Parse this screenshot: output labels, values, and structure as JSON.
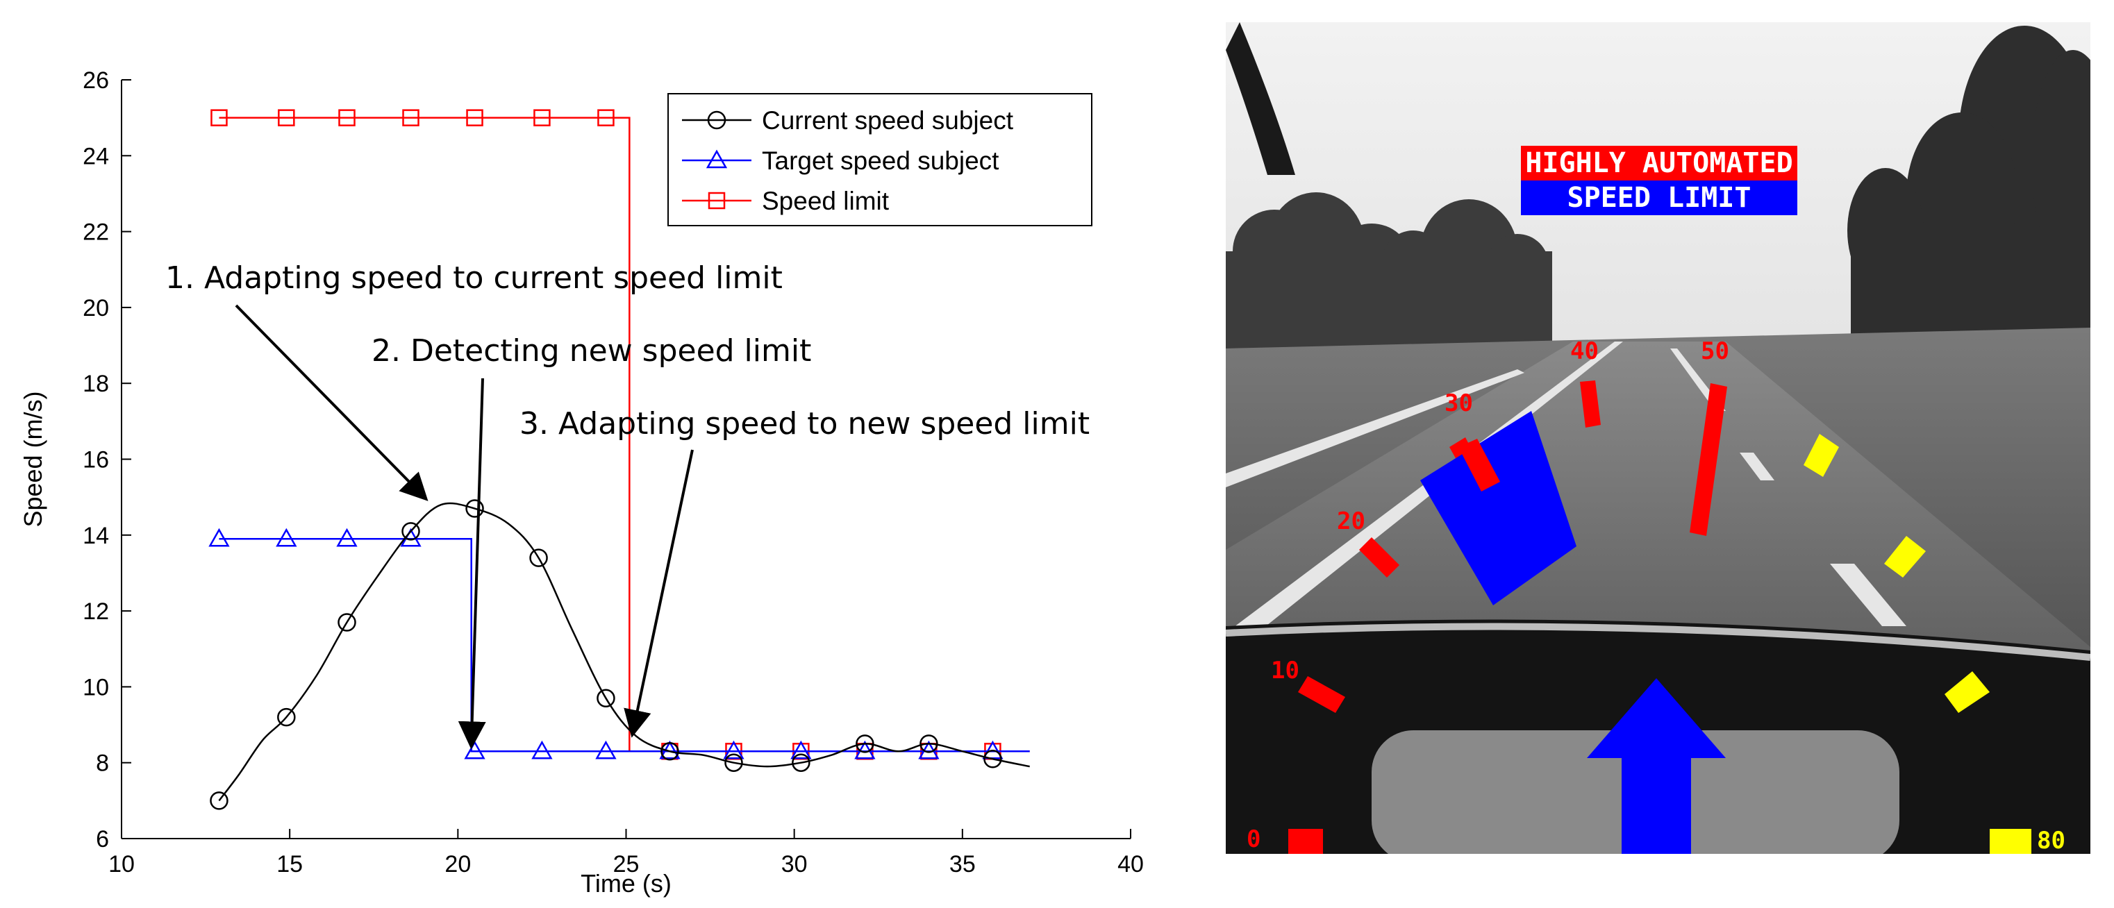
{
  "chart_data": {
    "type": "line",
    "xlabel": "Time (s)",
    "ylabel": "Speed (m/s)",
    "xlim": [
      10,
      40
    ],
    "ylim": [
      6,
      26
    ],
    "xticks": [
      10,
      15,
      20,
      25,
      30,
      35,
      40
    ],
    "yticks": [
      6,
      8,
      10,
      12,
      14,
      16,
      18,
      20,
      22,
      24,
      26
    ],
    "grid": false,
    "legend_position": "top-right",
    "legend": [
      "Current speed subject",
      "Target speed subject",
      "Speed limit"
    ],
    "series": [
      {
        "name": "Current speed subject",
        "color": "#000000",
        "marker": "circle",
        "curve": [
          [
            12.9,
            7.0
          ],
          [
            13.5,
            7.7
          ],
          [
            14.2,
            8.6
          ],
          [
            14.9,
            9.2
          ],
          [
            15.8,
            10.3
          ],
          [
            16.7,
            11.7
          ],
          [
            17.6,
            12.9
          ],
          [
            18.6,
            14.1
          ],
          [
            19.5,
            14.8
          ],
          [
            20.5,
            14.7
          ],
          [
            21.5,
            14.3
          ],
          [
            22.4,
            13.4
          ],
          [
            23.4,
            11.5
          ],
          [
            24.4,
            9.7
          ],
          [
            25.3,
            8.7
          ],
          [
            26.3,
            8.3
          ],
          [
            27.3,
            8.2
          ],
          [
            28.2,
            8.0
          ],
          [
            29.2,
            7.9
          ],
          [
            30.2,
            8.0
          ],
          [
            31.1,
            8.2
          ],
          [
            32.1,
            8.5
          ],
          [
            33.1,
            8.3
          ],
          [
            34.0,
            8.5
          ],
          [
            35.0,
            8.3
          ],
          [
            35.9,
            8.1
          ],
          [
            37.0,
            7.9
          ]
        ],
        "markers_x": [
          12.9,
          14.9,
          16.7,
          18.6,
          20.5,
          22.4,
          24.4,
          26.3,
          28.2,
          30.2,
          32.1,
          34.0,
          35.9
        ],
        "markers_y": [
          7.0,
          9.2,
          11.7,
          14.1,
          14.7,
          13.4,
          9.7,
          8.3,
          8.0,
          8.0,
          8.5,
          8.5,
          8.1
        ]
      },
      {
        "name": "Target speed subject",
        "color": "#0000ff",
        "marker": "triangle",
        "line": [
          [
            12.9,
            13.9
          ],
          [
            20.4,
            13.9
          ],
          [
            20.4,
            8.3
          ],
          [
            37.0,
            8.3
          ]
        ],
        "markers_x": [
          12.9,
          14.9,
          16.7,
          18.6,
          20.5,
          22.5,
          24.4,
          26.3,
          28.2,
          30.2,
          32.1,
          34.0,
          35.9
        ],
        "markers_y": [
          13.9,
          13.9,
          13.9,
          13.9,
          8.3,
          8.3,
          8.3,
          8.3,
          8.3,
          8.3,
          8.3,
          8.3,
          8.3
        ]
      },
      {
        "name": "Speed limit",
        "color": "#ff0000",
        "marker": "square",
        "line": [
          [
            12.9,
            25.0
          ],
          [
            25.1,
            25.0
          ],
          [
            25.1,
            8.3
          ],
          [
            37.0,
            8.3
          ]
        ],
        "markers_x": [
          12.9,
          14.9,
          16.7,
          18.6,
          20.5,
          22.5,
          24.4,
          26.3,
          28.2,
          30.2,
          32.1,
          34.0,
          35.9
        ],
        "markers_y": [
          25.0,
          25.0,
          25.0,
          25.0,
          25.0,
          25.0,
          25.0,
          8.3,
          8.3,
          8.3,
          8.3,
          8.3,
          8.3
        ]
      }
    ],
    "annotations": [
      {
        "text": "1. Adapting speed to current speed limit",
        "target": [
          19.0,
          15.0
        ]
      },
      {
        "text": "2. Detecting new speed limit",
        "target": [
          20.4,
          8.5
        ]
      },
      {
        "text": "3. Adapting speed to new speed limit",
        "target": [
          25.2,
          8.8
        ]
      }
    ]
  },
  "hud": {
    "mode_label": "HIGHLY AUTOMATED",
    "limit_label": "SPEED LIMIT",
    "colors": {
      "red": "#ff0000",
      "blue": "#0000ff",
      "yellow": "#ffff00"
    },
    "scale_labels": [
      "0",
      "10",
      "20",
      "30",
      "40",
      "50",
      "80"
    ],
    "current_speed_segment": "30",
    "speed_limit_segment": "50",
    "direction_icon": "arrow-up-icon"
  }
}
